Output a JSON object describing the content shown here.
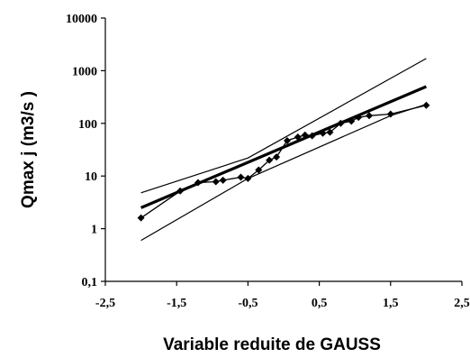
{
  "chart_data": {
    "type": "scatter",
    "title": "",
    "xlabel": "Variable reduite de GAUSS",
    "ylabel": "Qmax j (m3/s )",
    "xlim": [
      -2.5,
      2.5
    ],
    "ylim": [
      0.1,
      10000
    ],
    "y_scale": "log",
    "grid": false,
    "legend": "none",
    "x_tick_labels": [
      "-2,5",
      "-1,5",
      "-0,5",
      "0,5",
      "1,5",
      "2,5"
    ],
    "y_tick_labels": [
      "0,1",
      "1",
      "10",
      "100",
      "1000",
      "10000"
    ],
    "series": [
      {
        "style": "markers-connected",
        "color": "#000000",
        "points": [
          {
            "x": -2.0,
            "y": 1.6
          },
          {
            "x": -1.45,
            "y": 5.2
          },
          {
            "x": -1.2,
            "y": 7.5
          },
          {
            "x": -0.95,
            "y": 7.8
          },
          {
            "x": -0.85,
            "y": 8.3
          },
          {
            "x": -0.6,
            "y": 9.5
          },
          {
            "x": -0.5,
            "y": 9.0
          },
          {
            "x": -0.35,
            "y": 13
          },
          {
            "x": -0.2,
            "y": 20
          },
          {
            "x": -0.1,
            "y": 23
          },
          {
            "x": 0.05,
            "y": 47
          },
          {
            "x": 0.2,
            "y": 55
          },
          {
            "x": 0.3,
            "y": 60
          },
          {
            "x": 0.4,
            "y": 58
          },
          {
            "x": 0.55,
            "y": 65
          },
          {
            "x": 0.65,
            "y": 68
          },
          {
            "x": 0.8,
            "y": 100
          },
          {
            "x": 0.95,
            "y": 110
          },
          {
            "x": 1.05,
            "y": 130
          },
          {
            "x": 1.2,
            "y": 140
          },
          {
            "x": 1.5,
            "y": 150
          },
          {
            "x": 2.0,
            "y": 220
          }
        ]
      },
      {
        "style": "thick-line",
        "color": "#000000",
        "points": [
          {
            "x": -2.0,
            "y": 2.5
          },
          {
            "x": 2.0,
            "y": 500
          }
        ]
      },
      {
        "style": "thin-line",
        "color": "#000000",
        "points": [
          {
            "x": -2.0,
            "y": 4.8
          },
          {
            "x": -0.5,
            "y": 22
          },
          {
            "x": 2.0,
            "y": 1700
          }
        ]
      },
      {
        "style": "thin-line",
        "color": "#000000",
        "points": [
          {
            "x": -2.0,
            "y": 0.6
          },
          {
            "x": -0.5,
            "y": 9
          },
          {
            "x": 1.5,
            "y": 140
          },
          {
            "x": 2.0,
            "y": 230
          }
        ]
      }
    ]
  }
}
